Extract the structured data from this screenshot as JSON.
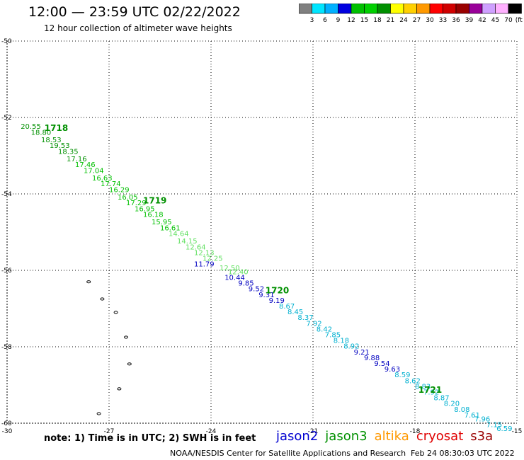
{
  "header": {
    "title": "12:00 — 23:59 UTC 02/22/2022",
    "subtitle": "12 hour collection of altimeter wave heights"
  },
  "colorbar": {
    "colors": [
      "#808080",
      "#00e5ff",
      "#00b0ff",
      "#0000e0",
      "#00c000",
      "#00d000",
      "#009000",
      "#ffff00",
      "#ffd000",
      "#ff9900",
      "#ff0000",
      "#d00000",
      "#990000",
      "#990099",
      "#cfa0ff",
      "#ffb0ff",
      "#000000"
    ],
    "labels": [
      "3",
      "6",
      "9",
      "12",
      "15",
      "18",
      "21",
      "24",
      "27",
      "30",
      "33",
      "36",
      "39",
      "42",
      "45",
      "70"
    ],
    "unit": "(ft)"
  },
  "map": {
    "lon_ticks": [
      "-30",
      "-27",
      "-24",
      "-21",
      "-18",
      "-15"
    ],
    "lat_ticks": [
      "-50",
      "-52",
      "-54",
      "-56",
      "-58",
      "-60"
    ],
    "lon_range": [
      -30,
      -15
    ],
    "lat_range": [
      -50,
      -60
    ],
    "tracks": [
      {
        "label": "1718",
        "label_color": "#009000",
        "lon": -28.9,
        "lat": -52.35
      },
      {
        "label": "1719",
        "label_color": "#009000",
        "lon": -26.0,
        "lat": -54.25
      },
      {
        "label": "1720",
        "label_color": "#009000",
        "lon": -22.4,
        "lat": -56.6
      },
      {
        "label": "1721",
        "label_color": "#009000",
        "lon": -17.9,
        "lat": -59.2
      }
    ],
    "points": [
      {
        "v": "20.55",
        "lon": -29.6,
        "lat": -52.3,
        "c": "#009000"
      },
      {
        "v": "18.80",
        "lon": -29.3,
        "lat": -52.45,
        "c": "#009000"
      },
      {
        "v": "18.53",
        "lon": -29.0,
        "lat": -52.65,
        "c": "#009000"
      },
      {
        "v": "19.53",
        "lon": -28.75,
        "lat": -52.8,
        "c": "#009000"
      },
      {
        "v": "18.35",
        "lon": -28.5,
        "lat": -52.95,
        "c": "#009000"
      },
      {
        "v": "17.16",
        "lon": -28.25,
        "lat": -53.15,
        "c": "#009000"
      },
      {
        "v": "17.46",
        "lon": -28.0,
        "lat": -53.3,
        "c": "#00c000"
      },
      {
        "v": "17.04",
        "lon": -27.75,
        "lat": -53.45,
        "c": "#00c000"
      },
      {
        "v": "16.63",
        "lon": -27.5,
        "lat": -53.65,
        "c": "#00c000"
      },
      {
        "v": "17.74",
        "lon": -27.25,
        "lat": -53.8,
        "c": "#00c000"
      },
      {
        "v": "16.29",
        "lon": -27.0,
        "lat": -53.95,
        "c": "#00c000"
      },
      {
        "v": "16.05",
        "lon": -26.75,
        "lat": -54.15,
        "c": "#00c000"
      },
      {
        "v": "17.29",
        "lon": -26.5,
        "lat": -54.3,
        "c": "#00c000"
      },
      {
        "v": "16.95",
        "lon": -26.25,
        "lat": -54.45,
        "c": "#00c000"
      },
      {
        "v": "16.18",
        "lon": -26.0,
        "lat": -54.6,
        "c": "#00c000"
      },
      {
        "v": "15.95",
        "lon": -25.75,
        "lat": -54.8,
        "c": "#00c000"
      },
      {
        "v": "16.61",
        "lon": -25.5,
        "lat": -54.95,
        "c": "#00c000"
      },
      {
        "v": "14.64",
        "lon": -25.25,
        "lat": -55.1,
        "c": "#60e060"
      },
      {
        "v": "14.15",
        "lon": -25.0,
        "lat": -55.3,
        "c": "#60e060"
      },
      {
        "v": "12.64",
        "lon": -24.75,
        "lat": -55.45,
        "c": "#60e060"
      },
      {
        "v": "12.13",
        "lon": -24.5,
        "lat": -55.6,
        "c": "#60e060"
      },
      {
        "v": "12.25",
        "lon": -24.25,
        "lat": -55.75,
        "c": "#60e060"
      },
      {
        "v": "11.79",
        "lon": -24.5,
        "lat": -55.9,
        "c": "#0000c0"
      },
      {
        "v": "12.50",
        "lon": -23.75,
        "lat": -56.0,
        "c": "#60e060"
      },
      {
        "v": "12.40",
        "lon": -23.5,
        "lat": -56.1,
        "c": "#60e060"
      },
      {
        "v": "10.44",
        "lon": -23.6,
        "lat": -56.25,
        "c": "#0000c0"
      },
      {
        "v": "9.85",
        "lon": -23.2,
        "lat": -56.4,
        "c": "#0000c0"
      },
      {
        "v": "9.52",
        "lon": -22.9,
        "lat": -56.55,
        "c": "#0000c0"
      },
      {
        "v": "9.31",
        "lon": -22.6,
        "lat": -56.7,
        "c": "#0000c0"
      },
      {
        "v": "9.19",
        "lon": -22.3,
        "lat": -56.85,
        "c": "#0000c0"
      },
      {
        "v": "8.67",
        "lon": -22.0,
        "lat": -57.0,
        "c": "#00b0d0"
      },
      {
        "v": "8.45",
        "lon": -21.75,
        "lat": -57.15,
        "c": "#00b0d0"
      },
      {
        "v": "8.37",
        "lon": -21.45,
        "lat": -57.3,
        "c": "#00b0d0"
      },
      {
        "v": "7.92",
        "lon": -21.2,
        "lat": -57.45,
        "c": "#00b0d0"
      },
      {
        "v": "8.42",
        "lon": -20.9,
        "lat": -57.6,
        "c": "#00b0d0"
      },
      {
        "v": "7.85",
        "lon": -20.65,
        "lat": -57.75,
        "c": "#00b0d0"
      },
      {
        "v": "8.18",
        "lon": -20.4,
        "lat": -57.9,
        "c": "#00b0d0"
      },
      {
        "v": "8.92",
        "lon": -20.1,
        "lat": -58.05,
        "c": "#00b0d0"
      },
      {
        "v": "9.21",
        "lon": -19.8,
        "lat": -58.2,
        "c": "#0000c0"
      },
      {
        "v": "9.88",
        "lon": -19.5,
        "lat": -58.35,
        "c": "#0000c0"
      },
      {
        "v": "9.54",
        "lon": -19.2,
        "lat": -58.5,
        "c": "#0000c0"
      },
      {
        "v": "9.63",
        "lon": -18.9,
        "lat": -58.65,
        "c": "#0000c0"
      },
      {
        "v": "8.59",
        "lon": -18.6,
        "lat": -58.8,
        "c": "#00b0d0"
      },
      {
        "v": "8.62",
        "lon": -18.3,
        "lat": -58.95,
        "c": "#00b0d0"
      },
      {
        "v": "8.83",
        "lon": -18.0,
        "lat": -59.1,
        "c": "#00b0d0"
      },
      {
        "v": "7.92",
        "lon": -17.75,
        "lat": -59.25,
        "c": "#00b0d0"
      },
      {
        "v": "8.87",
        "lon": -17.45,
        "lat": -59.4,
        "c": "#00b0d0"
      },
      {
        "v": "8.20",
        "lon": -17.15,
        "lat": -59.55,
        "c": "#00b0d0"
      },
      {
        "v": "8.08",
        "lon": -16.85,
        "lat": -59.7,
        "c": "#00b0d0"
      },
      {
        "v": "7.61",
        "lon": -16.55,
        "lat": -59.85,
        "c": "#00b0d0"
      },
      {
        "v": "7.96",
        "lon": -16.25,
        "lat": -59.95,
        "c": "#00b0d0"
      },
      {
        "v": "7.15",
        "lon": -15.9,
        "lat": -60.1,
        "c": "#00b0d0"
      },
      {
        "v": "6.59",
        "lon": -15.6,
        "lat": -60.2,
        "c": "#00b0d0"
      }
    ],
    "islands": [
      {
        "lon": -27.6,
        "lat": -56.3
      },
      {
        "lon": -27.2,
        "lat": -56.75
      },
      {
        "lon": -26.8,
        "lat": -57.1
      },
      {
        "lon": -26.5,
        "lat": -57.75
      },
      {
        "lon": -26.4,
        "lat": -58.45
      },
      {
        "lon": -26.7,
        "lat": -59.1
      },
      {
        "lon": -27.3,
        "lat": -59.75
      }
    ]
  },
  "footer": {
    "note": "note:  1) Time is in UTC;  2) SWH is in feet",
    "legend": [
      {
        "name": "jason2",
        "color": "#0000d0"
      },
      {
        "name": "jason3",
        "color": "#009000"
      },
      {
        "name": "altika",
        "color": "#ff9900"
      },
      {
        "name": "cryosat",
        "color": "#e00000"
      },
      {
        "name": "s3a",
        "color": "#990000"
      }
    ],
    "credit": "NOAA/NESDIS Center for Satellite Applications and Research",
    "timestamp": "Feb 24 08:30:03 UTC 2022"
  }
}
